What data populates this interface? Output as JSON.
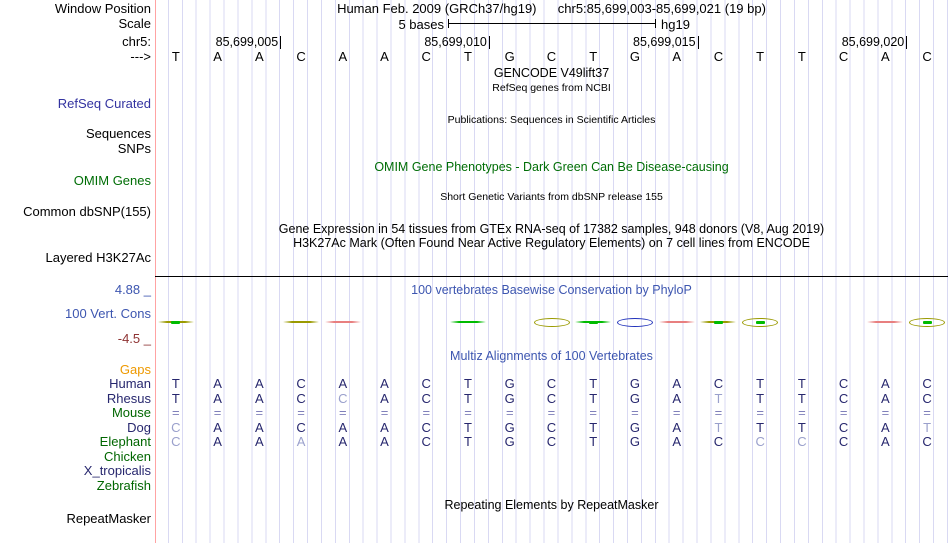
{
  "header": {
    "window_position_label": "Window Position",
    "assembly_title": "Human Feb. 2009 (GRCh37/hg19)",
    "range_title": "chr5:85,699,003-85,699,021 (19 bp)",
    "scale_label": "Scale",
    "scale_text": "5 bases",
    "scale_genome": "hg19",
    "chrom_label": "chr5:",
    "strand_arrow": "--->",
    "position_ticks": [
      {
        "label": "85,699,005",
        "base_index": 3
      },
      {
        "label": "85,699,010",
        "base_index": 8
      },
      {
        "label": "85,699,015",
        "base_index": 13
      },
      {
        "label": "85,699,020",
        "base_index": 18
      }
    ],
    "sequence": [
      "T",
      "A",
      "A",
      "C",
      "A",
      "A",
      "C",
      "T",
      "G",
      "C",
      "T",
      "G",
      "A",
      "C",
      "T",
      "T",
      "C",
      "A",
      "C"
    ]
  },
  "tracks": {
    "gencode_title": "GENCODE V49lift37",
    "gencode_subtitle": "RefSeq genes from NCBI",
    "refseq_label": "RefSeq Curated",
    "publications_title": "Publications: Sequences in Scientific Articles",
    "sequences_label": "Sequences",
    "snps_label": "SNPs",
    "omim_title": "OMIM Gene Phenotypes - Dark Green Can Be Disease-causing",
    "omim_label": "OMIM Genes",
    "dbsnp_title": "Short Genetic Variants from dbSNP release 155",
    "dbsnp_label": "Common dbSNP(155)",
    "gtex_title": "Gene Expression in 54 tissues from GTEx RNA-seq of 17382 samples, 948 donors (V8, Aug 2019)",
    "h3k27ac_title": "H3K27Ac Mark (Often Found Near Active Regulatory Elements) on 7 cell lines from ENCODE",
    "h3k27ac_label": "Layered H3K27Ac"
  },
  "conservation": {
    "title": "100 vertebrates Basewise Conservation by PhyloP",
    "label": "100 Vert. Cons",
    "max_value": "4.88 _",
    "min_value": "-4.5 _",
    "marks": [
      {
        "base": 1,
        "shape": "dash",
        "color": "olive",
        "green_dot": true
      },
      {
        "base": 4,
        "shape": "dash",
        "color": "olive",
        "green_dot": false
      },
      {
        "base": 5,
        "shape": "dash",
        "color": "red",
        "green_dot": false
      },
      {
        "base": 8,
        "shape": "dash",
        "color": "green",
        "green_dot": false
      },
      {
        "base": 10,
        "shape": "loop",
        "color": "olive",
        "green_dot": false
      },
      {
        "base": 11,
        "shape": "dash",
        "color": "green",
        "green_dot": true
      },
      {
        "base": 12,
        "shape": "loop",
        "color": "blue",
        "green_dot": false
      },
      {
        "base": 13,
        "shape": "dash",
        "color": "red",
        "green_dot": false
      },
      {
        "base": 14,
        "shape": "dash",
        "color": "olive",
        "green_dot": true
      },
      {
        "base": 15,
        "shape": "loop",
        "color": "olive",
        "green_dot": true
      },
      {
        "base": 18,
        "shape": "dash",
        "color": "red",
        "green_dot": false
      },
      {
        "base": 19,
        "shape": "loop",
        "color": "olive",
        "green_dot": true
      }
    ]
  },
  "alignment": {
    "title": "Multiz Alignments of 100 Vertebrates",
    "species": [
      {
        "name": "Gaps",
        "color": "orange",
        "bases": [],
        "light": []
      },
      {
        "name": "Human",
        "color": "navy",
        "bases": [
          "T",
          "A",
          "A",
          "C",
          "A",
          "A",
          "C",
          "T",
          "G",
          "C",
          "T",
          "G",
          "A",
          "C",
          "T",
          "T",
          "C",
          "A",
          "C"
        ],
        "light": []
      },
      {
        "name": "Rhesus",
        "color": "navy",
        "bases": [
          "T",
          "A",
          "A",
          "C",
          "C",
          "A",
          "C",
          "T",
          "G",
          "C",
          "T",
          "G",
          "A",
          "T",
          "T",
          "T",
          "C",
          "A",
          "C"
        ],
        "light": [
          4,
          13
        ]
      },
      {
        "name": "Mouse",
        "color": "green",
        "bases": [
          "=",
          "=",
          "=",
          "=",
          "=",
          "=",
          "=",
          "=",
          "=",
          "=",
          "=",
          "=",
          "=",
          "=",
          "=",
          "=",
          "=",
          "=",
          "="
        ],
        "light": []
      },
      {
        "name": "Dog",
        "color": "navy",
        "bases": [
          "C",
          "A",
          "A",
          "C",
          "A",
          "A",
          "C",
          "T",
          "G",
          "C",
          "T",
          "G",
          "A",
          "T",
          "T",
          "T",
          "C",
          "A",
          "T"
        ],
        "light": [
          0,
          13,
          18
        ]
      },
      {
        "name": "Elephant",
        "color": "green",
        "bases": [
          "C",
          "A",
          "A",
          "A",
          "A",
          "A",
          "C",
          "T",
          "G",
          "C",
          "T",
          "G",
          "A",
          "C",
          "C",
          "C",
          "C",
          "A",
          "C"
        ],
        "light": [
          0,
          3,
          14,
          15
        ]
      },
      {
        "name": "Chicken",
        "color": "green",
        "bases": [],
        "light": []
      },
      {
        "name": "X_tropicalis",
        "color": "navy",
        "bases": [],
        "light": []
      },
      {
        "name": "Zebrafish",
        "color": "green",
        "bases": [],
        "light": []
      }
    ]
  },
  "repeats": {
    "title": "Repeating Elements by RepeatMasker",
    "label": "RepeatMasker"
  },
  "colors": {
    "navy": "#27276e",
    "light_letter": "#9aa0cc",
    "equals": "#8080ba",
    "green": "#006600",
    "orange": "#ee9900",
    "title_blue": "#3d56b0",
    "refseq_blue": "#3333a0",
    "omim_green": "#006e06",
    "maroon": "#8e3333",
    "salmon_line": "#ffa3a3",
    "gridline": "#d9d9f3",
    "mark_olive": "#9a9a00",
    "mark_green": "#00bb00",
    "mark_red": "#e87f7f",
    "mark_blue": "#2233bb"
  }
}
